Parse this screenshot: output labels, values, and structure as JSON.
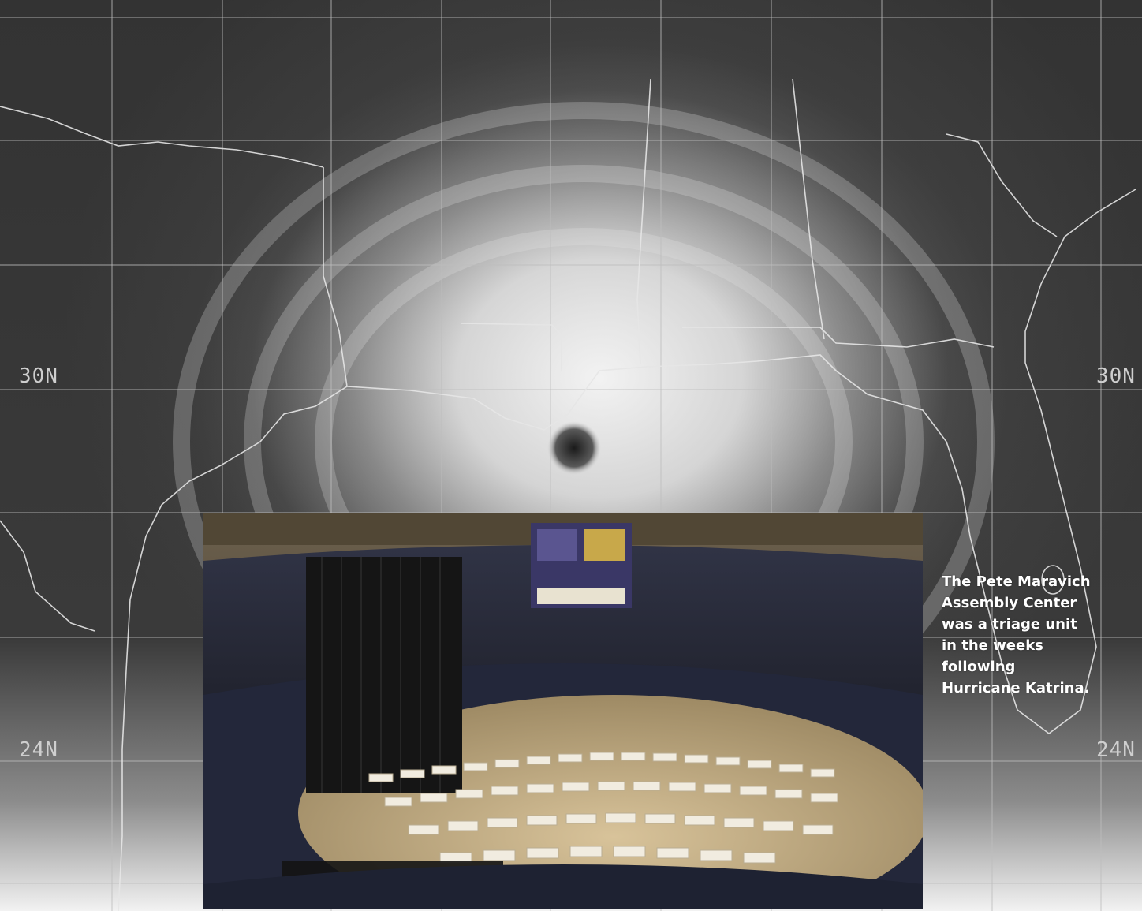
{
  "satellite": {
    "lat_labels": {
      "lat30_left": "30N",
      "lat30_right": "30N",
      "lat24_left": "24N",
      "lat24_right": "24N"
    }
  },
  "caption": {
    "text": "The Pete Maravich Assembly Center was a triage unit in the weeks following Hurricane Katrina."
  },
  "colors": {
    "grid": "#bdbdbd",
    "coastline": "#e6e6e6",
    "caption_text": "#ffffff"
  }
}
